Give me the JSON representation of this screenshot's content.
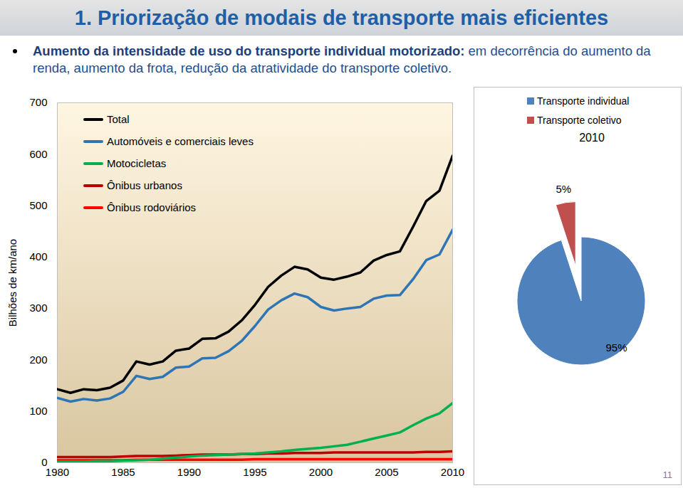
{
  "header": {
    "title": "1. Priorização de modais de transporte mais eficientes"
  },
  "bullet": {
    "lead": "Aumento da intensidade de uso do transporte individual motorizado:",
    "text": " em decorrência do aumento da renda, aumento da frota, redução da atratividade do transporte coletivo."
  },
  "page_number": "11",
  "chart_data": [
    {
      "type": "line",
      "ylabel": "Bilhões de km/ano",
      "x": [
        1980,
        1981,
        1982,
        1983,
        1984,
        1985,
        1986,
        1987,
        1988,
        1989,
        1990,
        1991,
        1992,
        1993,
        1994,
        1995,
        1996,
        1997,
        1998,
        1999,
        2000,
        2001,
        2002,
        2003,
        2004,
        2005,
        2006,
        2007,
        2008,
        2009,
        2010
      ],
      "series": [
        {
          "name": "Total",
          "color": "#000000",
          "values": [
            143,
            136,
            143,
            141,
            146,
            160,
            197,
            191,
            197,
            218,
            222,
            241,
            242,
            255,
            277,
            307,
            342,
            364,
            381,
            376,
            360,
            356,
            362,
            370,
            393,
            404,
            411,
            459,
            509,
            529,
            597
          ]
        },
        {
          "name": "Automóveis e comerciais leves",
          "color": "#2e75b6",
          "values": [
            126,
            119,
            124,
            121,
            125,
            138,
            169,
            163,
            167,
            185,
            187,
            203,
            204,
            217,
            237,
            266,
            298,
            316,
            329,
            322,
            303,
            296,
            300,
            303,
            319,
            325,
            326,
            357,
            394,
            405,
            453
          ]
        },
        {
          "name": "Motocicletas",
          "color": "#00b050",
          "values": [
            2,
            2,
            2,
            3,
            3,
            4,
            5,
            6,
            8,
            10,
            12,
            14,
            15,
            16,
            17,
            18,
            20,
            22,
            25,
            27,
            29,
            32,
            35,
            41,
            47,
            53,
            59,
            73,
            86,
            96,
            116
          ]
        },
        {
          "name": "Ônibus urbanos",
          "color": "#c00000",
          "values": [
            11,
            11,
            11,
            11,
            11,
            12,
            13,
            13,
            13,
            14,
            15,
            16,
            16,
            16,
            17,
            17,
            18,
            18,
            19,
            19,
            19,
            20,
            20,
            20,
            20,
            20,
            20,
            20,
            21,
            21,
            22
          ]
        },
        {
          "name": "Ônibus rodoviários",
          "color": "#ff0000",
          "values": [
            5,
            5,
            5,
            5,
            5,
            5,
            6,
            6,
            6,
            6,
            6,
            6,
            6,
            6,
            6,
            7,
            7,
            7,
            7,
            7,
            7,
            7,
            7,
            7,
            7,
            7,
            7,
            7,
            7,
            7,
            7
          ]
        }
      ],
      "xlim": [
        1980,
        2010
      ],
      "xticks": [
        1980,
        1985,
        1990,
        1995,
        2000,
        2005,
        2010
      ],
      "ylim": [
        0,
        700
      ],
      "yticks": [
        0,
        100,
        200,
        300,
        400,
        500,
        600,
        700
      ],
      "grid": false,
      "legend": "upper left"
    },
    {
      "type": "pie",
      "title": "2010",
      "categories": [
        "Transporte individual",
        "Transporte coletivo"
      ],
      "values": [
        95,
        5
      ],
      "value_labels": [
        "95%",
        "5%"
      ],
      "colors": [
        "#4f81bd",
        "#c0504d"
      ],
      "data_labels": true,
      "legend": "top"
    }
  ]
}
